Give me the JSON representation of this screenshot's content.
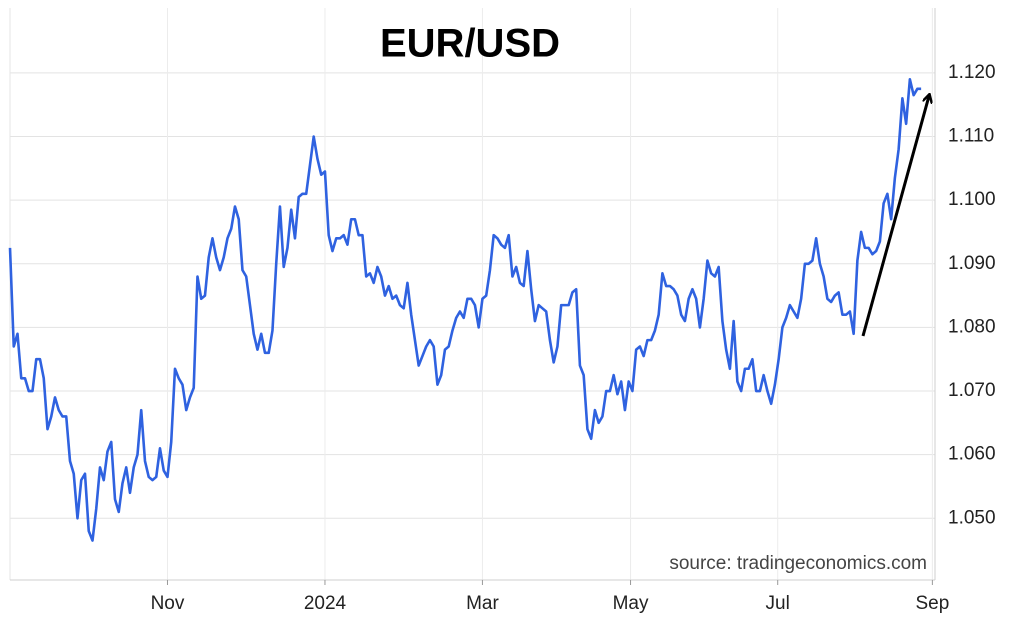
{
  "chart_data": {
    "type": "line",
    "title": "EUR/USD",
    "source": "source: tradingeconomics.com",
    "color": "#2f62e0",
    "grid": true,
    "ylim": [
      1.0403,
      1.1302
    ],
    "yticks": [
      {
        "value": 1.05,
        "label": "1.050"
      },
      {
        "value": 1.06,
        "label": "1.060"
      },
      {
        "value": 1.07,
        "label": "1.070"
      },
      {
        "value": 1.08,
        "label": "1.080"
      },
      {
        "value": 1.09,
        "label": "1.090"
      },
      {
        "value": 1.1,
        "label": "1.100"
      },
      {
        "value": 1.11,
        "label": "1.110"
      },
      {
        "value": 1.12,
        "label": "1.120"
      }
    ],
    "xlim": [
      0,
      246.7
    ],
    "xticks": [
      {
        "value": 42,
        "label": "Nov"
      },
      {
        "value": 84,
        "label": "2024"
      },
      {
        "value": 126,
        "label": "Mar"
      },
      {
        "value": 165.5,
        "label": "May"
      },
      {
        "value": 204.75,
        "label": "Jul"
      },
      {
        "value": 246,
        "label": "Sep"
      }
    ],
    "values": [
      1.0925,
      1.077,
      1.079,
      1.072,
      1.072,
      1.07,
      1.07,
      1.075,
      1.075,
      1.072,
      1.064,
      1.066,
      1.069,
      1.067,
      1.066,
      1.066,
      1.059,
      1.057,
      1.05,
      1.056,
      1.057,
      1.048,
      1.0465,
      1.0515,
      1.058,
      1.056,
      1.0605,
      1.062,
      1.053,
      1.051,
      1.0555,
      1.058,
      1.054,
      1.058,
      1.06,
      1.067,
      1.059,
      1.0565,
      1.056,
      1.0565,
      1.061,
      1.0575,
      1.0565,
      1.062,
      1.0735,
      1.072,
      1.071,
      1.067,
      1.069,
      1.0705,
      1.088,
      1.0845,
      1.085,
      1.091,
      1.094,
      1.091,
      1.089,
      1.091,
      1.094,
      1.0955,
      1.099,
      1.097,
      1.089,
      1.088,
      1.0835,
      1.079,
      1.0765,
      1.079,
      1.076,
      1.076,
      1.0795,
      1.09,
      1.099,
      1.0895,
      1.0925,
      1.0985,
      1.094,
      1.1005,
      1.101,
      1.101,
      1.1055,
      1.11,
      1.1065,
      1.104,
      1.1045,
      1.0945,
      1.092,
      1.094,
      1.094,
      1.0945,
      1.093,
      1.097,
      1.097,
      1.0945,
      1.0945,
      1.088,
      1.0885,
      1.087,
      1.0895,
      1.088,
      1.085,
      1.0865,
      1.0845,
      1.085,
      1.0835,
      1.083,
      1.087,
      1.082,
      1.078,
      1.074,
      1.0755,
      1.077,
      1.078,
      1.077,
      1.071,
      1.0725,
      1.0765,
      1.077,
      1.0795,
      1.0815,
      1.0825,
      1.0815,
      1.0845,
      1.0845,
      1.0835,
      1.08,
      1.0845,
      1.085,
      1.089,
      1.0945,
      1.094,
      1.093,
      1.0925,
      1.0945,
      1.088,
      1.0895,
      1.087,
      1.0865,
      1.092,
      1.086,
      1.081,
      1.0835,
      1.083,
      1.0825,
      1.078,
      1.0745,
      1.077,
      1.0835,
      1.0835,
      1.0835,
      1.0855,
      1.086,
      1.074,
      1.0725,
      1.064,
      1.0625,
      1.067,
      1.065,
      1.066,
      1.07,
      1.07,
      1.0725,
      1.0695,
      1.0715,
      1.067,
      1.0715,
      1.07,
      1.0765,
      1.077,
      1.0755,
      1.078,
      1.078,
      1.0795,
      1.082,
      1.0885,
      1.0865,
      1.0865,
      1.086,
      1.085,
      1.082,
      1.081,
      1.0845,
      1.086,
      1.0845,
      1.08,
      1.0845,
      1.0905,
      1.0885,
      1.088,
      1.0895,
      1.081,
      1.0765,
      1.0735,
      1.081,
      1.0715,
      1.07,
      1.0735,
      1.0735,
      1.075,
      1.07,
      1.07,
      1.0725,
      1.07,
      1.068,
      1.071,
      1.075,
      1.08,
      1.0815,
      1.0835,
      1.0825,
      1.0815,
      1.0845,
      1.09,
      1.09,
      1.0905,
      1.094,
      1.09,
      1.088,
      1.0845,
      1.084,
      1.085,
      1.0855,
      1.082,
      1.082,
      1.0825,
      1.079,
      1.0905,
      1.095,
      1.0925,
      1.0925,
      1.0915,
      1.092,
      1.0935,
      1.0995,
      1.101,
      1.097,
      1.1035,
      1.108,
      1.116,
      1.112,
      1.119,
      1.1165,
      1.1175,
      1.1175
    ]
  }
}
